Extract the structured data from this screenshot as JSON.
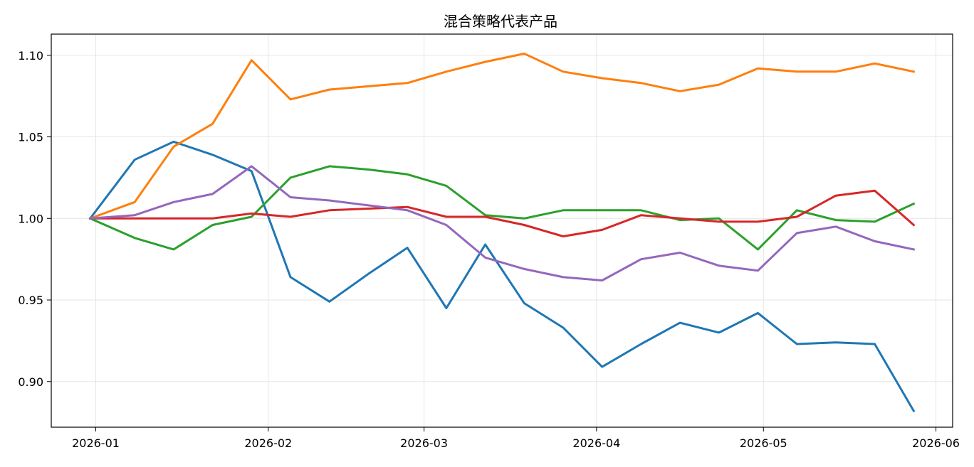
{
  "chart_data": {
    "type": "line",
    "title": "混合策略代表产品",
    "xlabel": "",
    "ylabel": "",
    "x": [
      "2025-12-31",
      "2026-01-08",
      "2026-01-15",
      "2026-01-22",
      "2026-01-29",
      "2026-02-05",
      "2026-02-12",
      "2026-02-19",
      "2026-02-26",
      "2026-03-05",
      "2026-03-12",
      "2026-03-19",
      "2026-03-26",
      "2026-04-02",
      "2026-04-09",
      "2026-04-16",
      "2026-04-23",
      "2026-04-30",
      "2026-05-07",
      "2026-05-14",
      "2026-05-21",
      "2026-05-28"
    ],
    "x_ticks": [
      "2026-01",
      "2026-02",
      "2026-03",
      "2026-04",
      "2026-05",
      "2026-06"
    ],
    "x_tick_dates": [
      "2026-01-01",
      "2026-02-01",
      "2026-03-01",
      "2026-04-01",
      "2026-05-01",
      "2026-06-01"
    ],
    "xlim": [
      "2025-12-24",
      "2026-06-04"
    ],
    "y_ticks": [
      "0.90",
      "0.95",
      "1.00",
      "1.05",
      "1.10"
    ],
    "ylim": [
      0.872,
      1.113
    ],
    "grid": true,
    "legend": "none",
    "series": [
      {
        "color": "#1f77b4",
        "values": [
          1.0,
          1.036,
          1.047,
          1.039,
          1.029,
          0.964,
          0.949,
          0.966,
          0.982,
          0.945,
          0.984,
          0.948,
          0.933,
          0.909,
          0.923,
          0.936,
          0.93,
          0.942,
          0.923,
          0.924,
          0.923,
          0.882
        ]
      },
      {
        "color": "#ff7f0e",
        "values": [
          1.0,
          1.01,
          1.044,
          1.058,
          1.097,
          1.073,
          1.079,
          1.081,
          1.083,
          1.09,
          1.096,
          1.101,
          1.09,
          1.086,
          1.083,
          1.078,
          1.082,
          1.092,
          1.09,
          1.09,
          1.095,
          1.09
        ]
      },
      {
        "color": "#2ca02c",
        "values": [
          1.0,
          0.988,
          0.981,
          0.996,
          1.001,
          1.025,
          1.032,
          1.03,
          1.027,
          1.02,
          1.002,
          1.0,
          1.005,
          1.005,
          1.005,
          0.999,
          1.0,
          0.981,
          1.005,
          0.999,
          0.998,
          1.009
        ]
      },
      {
        "color": "#d62728",
        "values": [
          1.0,
          1.0,
          1.0,
          1.0,
          1.003,
          1.001,
          1.005,
          1.006,
          1.007,
          1.001,
          1.001,
          0.996,
          0.989,
          0.993,
          1.002,
          1.0,
          0.998,
          0.998,
          1.001,
          1.014,
          1.017,
          0.996
        ]
      },
      {
        "color": "#9467bd",
        "values": [
          1.0,
          1.002,
          1.01,
          1.015,
          1.032,
          1.013,
          1.011,
          1.008,
          1.005,
          0.996,
          0.976,
          0.969,
          0.964,
          0.962,
          0.975,
          0.979,
          0.971,
          0.968,
          0.991,
          0.995,
          0.986,
          0.981
        ]
      }
    ]
  }
}
